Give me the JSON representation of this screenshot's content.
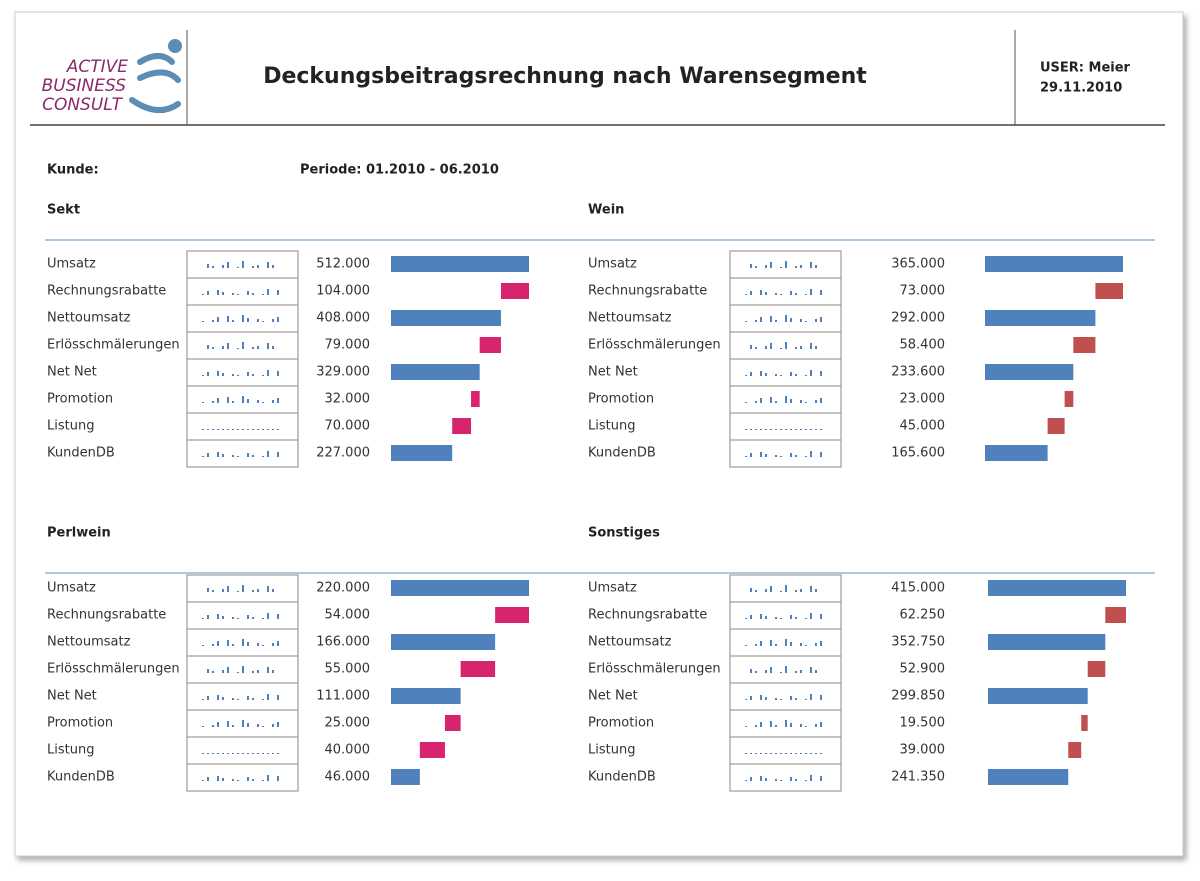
{
  "header": {
    "logo": [
      "ACTIVE",
      "BUSINESS",
      "CONSULT"
    ],
    "title": "Deckungsbeitragsrechnung nach Warensegment",
    "user": "USER: Meier",
    "date": "29.11.2010"
  },
  "filters": {
    "customer": "Kunde:",
    "period": "Periode: 01.2010 - 06.2010"
  },
  "chart_data": [
    {
      "type": "waterfall",
      "title": "Sekt",
      "categories": [
        "Umsatz",
        "Rechnungsrabatte",
        "Nettoumsatz",
        "Erlösschmälerungen",
        "Net Net",
        "Promotion",
        "Listung",
        "KundenDB"
      ],
      "values": [
        512000,
        104000,
        408000,
        79000,
        329000,
        32000,
        70000,
        227000
      ],
      "value_labels": [
        "512.000",
        "104.000",
        "408.000",
        "79.000",
        "329.000",
        "32.000",
        "70.000",
        "227.000"
      ],
      "total_color": "#4f81bd",
      "deduction_color": "#d6246e"
    },
    {
      "type": "waterfall",
      "title": "Wein",
      "categories": [
        "Umsatz",
        "Rechnungsrabatte",
        "Nettoumsatz",
        "Erlösschmälerungen",
        "Net Net",
        "Promotion",
        "Listung",
        "KundenDB"
      ],
      "values": [
        365000,
        73000,
        292000,
        58400,
        233600,
        23000,
        45000,
        165600
      ],
      "value_labels": [
        "365.000",
        "73.000",
        "292.000",
        "58.400",
        "233.600",
        "23.000",
        "45.000",
        "165.600"
      ],
      "total_color": "#4f81bd",
      "deduction_color": "#c0504d"
    },
    {
      "type": "waterfall",
      "title": "Perlwein",
      "categories": [
        "Umsatz",
        "Rechnungsrabatte",
        "Nettoumsatz",
        "Erlösschmälerungen",
        "Net Net",
        "Promotion",
        "Listung",
        "KundenDB"
      ],
      "values": [
        220000,
        54000,
        166000,
        55000,
        111000,
        25000,
        40000,
        46000
      ],
      "value_labels": [
        "220.000",
        "54.000",
        "166.000",
        "55.000",
        "111.000",
        "25.000",
        "40.000",
        "46.000"
      ],
      "total_color": "#4f81bd",
      "deduction_color": "#d6246e"
    },
    {
      "type": "waterfall",
      "title": "Sonstiges",
      "categories": [
        "Umsatz",
        "Rechnungsrabatte",
        "Nettoumsatz",
        "Erlösschmälerungen",
        "Net Net",
        "Promotion",
        "Listung",
        "KundenDB"
      ],
      "values": [
        415000,
        62250,
        352750,
        52900,
        299850,
        19500,
        39000,
        241350
      ],
      "value_labels": [
        "415.000",
        "62.250",
        "352.750",
        "52.900",
        "299.850",
        "19.500",
        "39.000",
        "241.350"
      ],
      "total_color": "#4f81bd",
      "deduction_color": "#c0504d"
    }
  ]
}
